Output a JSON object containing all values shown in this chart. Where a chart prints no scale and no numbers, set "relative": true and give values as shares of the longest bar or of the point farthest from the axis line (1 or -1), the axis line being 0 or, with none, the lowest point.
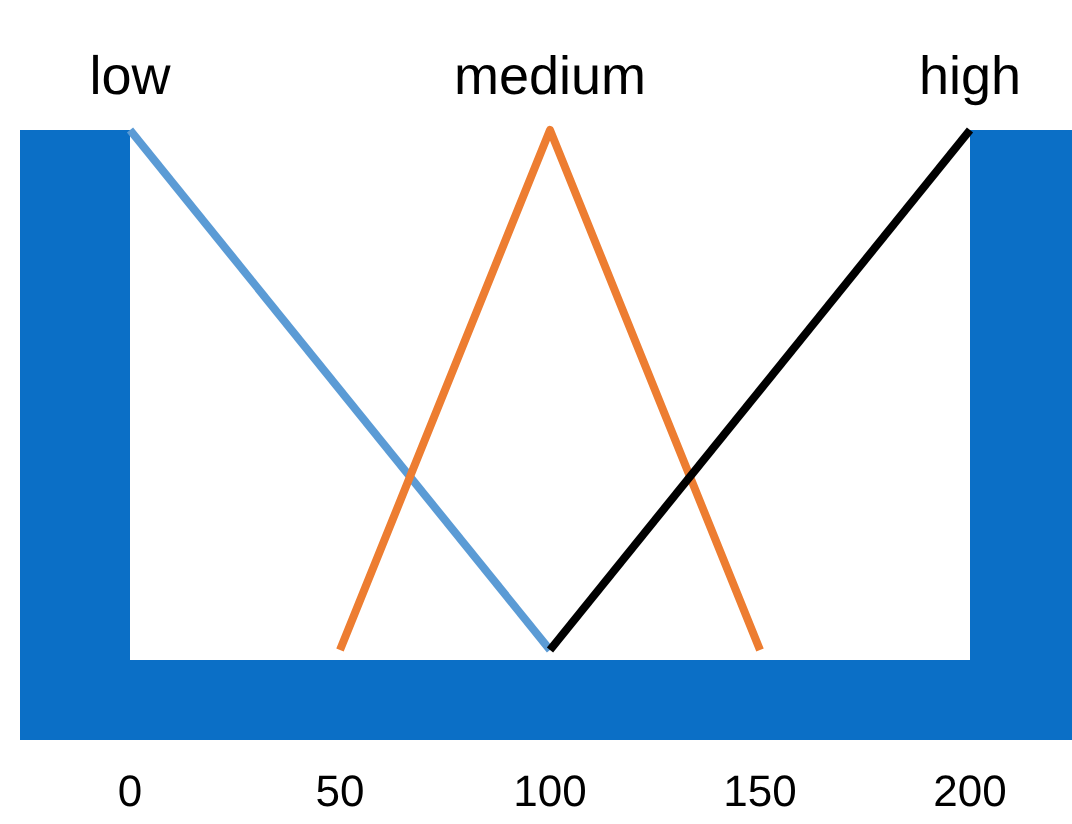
{
  "chart_data": {
    "type": "line",
    "relative": true,
    "xlim": [
      0,
      200
    ],
    "xticks": [
      0,
      50,
      100,
      150,
      200
    ],
    "series": [
      {
        "name": "low",
        "color": "#5b9bd5",
        "x": [
          0,
          100
        ],
        "values": [
          1,
          0
        ]
      },
      {
        "name": "medium",
        "color": "#ed7d31",
        "x": [
          50,
          100,
          150
        ],
        "values": [
          0,
          1,
          0
        ]
      },
      {
        "name": "high",
        "color": "#000000",
        "x": [
          100,
          200
        ],
        "values": [
          0,
          1
        ]
      }
    ]
  }
}
